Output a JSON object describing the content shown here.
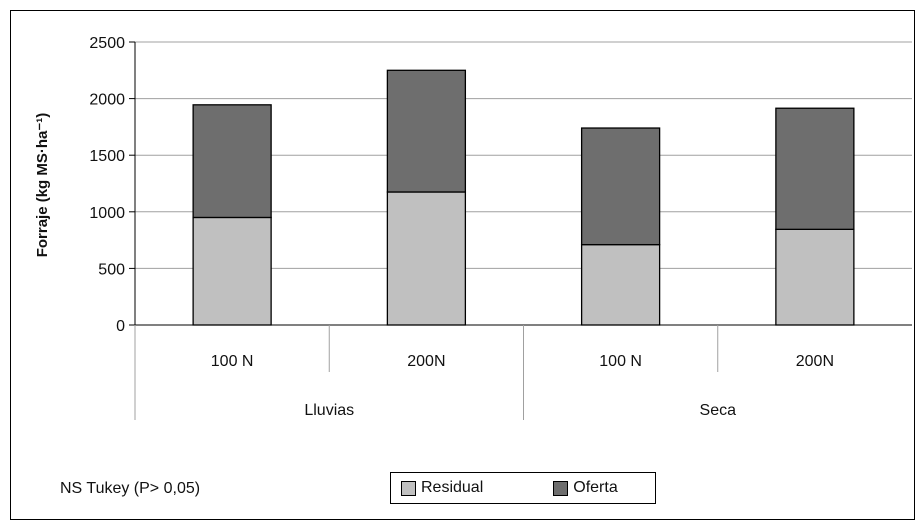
{
  "chart_data": {
    "type": "bar",
    "stacked": true,
    "categories": [
      "100 N",
      "200N",
      "100 N",
      "200N"
    ],
    "groups": [
      "Lluvias",
      "Seca"
    ],
    "series": [
      {
        "name": "Residual",
        "color": "#c0c0c0",
        "values": [
          950,
          1175,
          710,
          845
        ]
      },
      {
        "name": "Oferta",
        "color": "#6e6e6e",
        "values": [
          995,
          1075,
          1030,
          1070
        ]
      }
    ],
    "ylabel": "Forraje (kg MS·ha⁻¹)",
    "ylim": [
      0,
      2500
    ],
    "yticks": [
      0,
      500,
      1000,
      1500,
      2000,
      2500
    ],
    "grid": true,
    "legend_position": "bottom"
  },
  "footnote": "NS Tukey (P> 0,05)"
}
